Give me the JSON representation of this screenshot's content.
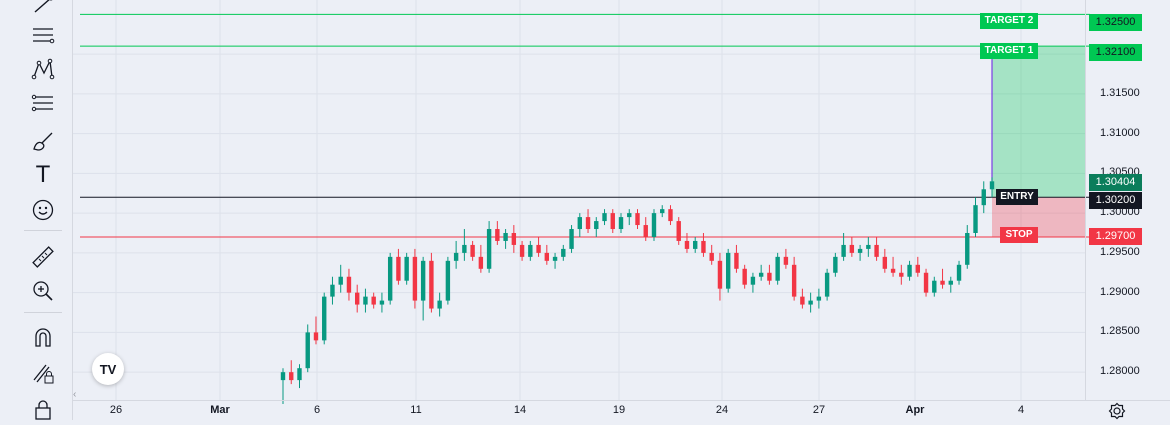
{
  "toolbar": {
    "tools": [
      {
        "name": "trend-line-icon"
      },
      {
        "name": "parallel-lines-icon"
      },
      {
        "name": "pattern-xabcd-icon"
      },
      {
        "name": "fib-retracement-icon"
      },
      {
        "name": "brush-icon"
      },
      {
        "name": "text-tool-icon",
        "glyph": "T"
      },
      {
        "name": "emoji-icon"
      },
      {
        "name": "ruler-icon"
      },
      {
        "name": "zoom-in-icon"
      },
      {
        "name": "magnet-icon"
      },
      {
        "name": "lock-drawing-icon"
      },
      {
        "name": "lock-icon"
      }
    ]
  },
  "chart_data": {
    "type": "candlestick",
    "symbol_logo": "TV",
    "y_ticks": [
      "1.28000",
      "1.28500",
      "1.29000",
      "1.29500",
      "1.30000",
      "1.30500",
      "1.31000",
      "1.31500",
      "1.32000"
    ],
    "y_range": [
      1.2765,
      1.3268
    ],
    "x_ticks": [
      "26",
      "Mar",
      "6",
      "11",
      "14",
      "19",
      "24",
      "27",
      "Apr",
      "4"
    ],
    "levels": {
      "target2": {
        "label": "TARGET 2",
        "price": "1.32500",
        "value": 1.325,
        "color": "#00c853"
      },
      "target1": {
        "label": "TARGET 1",
        "price": "1.32100",
        "value": 1.321,
        "color": "#00c853"
      },
      "entry": {
        "label": "ENTRY",
        "price": "1.30200",
        "value": 1.302,
        "color": "#131722"
      },
      "stop": {
        "label": "STOP",
        "price": "1.29700",
        "value": 1.297,
        "color": "#f23645"
      },
      "current": {
        "price": "1.30404",
        "value": 1.30404,
        "color": "#0b7d5b"
      }
    },
    "candles": [
      [
        1.279,
        1.2805,
        1.276,
        1.28
      ],
      [
        1.28,
        1.2815,
        1.2785,
        1.279
      ],
      [
        1.279,
        1.281,
        1.278,
        1.2805
      ],
      [
        1.2805,
        1.286,
        1.28,
        1.285
      ],
      [
        1.285,
        1.287,
        1.2835,
        1.284
      ],
      [
        1.284,
        1.29,
        1.2835,
        1.2895
      ],
      [
        1.2895,
        1.292,
        1.2885,
        1.291
      ],
      [
        1.291,
        1.2935,
        1.29,
        1.292
      ],
      [
        1.292,
        1.293,
        1.289,
        1.29
      ],
      [
        1.29,
        1.291,
        1.2875,
        1.2885
      ],
      [
        1.2885,
        1.2905,
        1.2875,
        1.2895
      ],
      [
        1.2895,
        1.29,
        1.288,
        1.2885
      ],
      [
        1.2885,
        1.29,
        1.2875,
        1.289
      ],
      [
        1.289,
        1.295,
        1.2885,
        1.2945
      ],
      [
        1.2945,
        1.2955,
        1.291,
        1.2915
      ],
      [
        1.2915,
        1.295,
        1.291,
        1.2945
      ],
      [
        1.2945,
        1.2955,
        1.288,
        1.289
      ],
      [
        1.289,
        1.2945,
        1.2865,
        1.294
      ],
      [
        1.294,
        1.295,
        1.2875,
        1.288
      ],
      [
        1.288,
        1.29,
        1.287,
        1.289
      ],
      [
        1.289,
        1.2945,
        1.2885,
        1.294
      ],
      [
        1.294,
        1.2965,
        1.293,
        1.295
      ],
      [
        1.295,
        1.298,
        1.294,
        1.296
      ],
      [
        1.296,
        1.2965,
        1.294,
        1.2945
      ],
      [
        1.2945,
        1.296,
        1.2925,
        1.293
      ],
      [
        1.293,
        1.299,
        1.2925,
        1.298
      ],
      [
        1.298,
        1.299,
        1.296,
        1.2965
      ],
      [
        1.2965,
        1.298,
        1.2955,
        1.2975
      ],
      [
        1.2975,
        1.2985,
        1.295,
        1.296
      ],
      [
        1.296,
        1.2965,
        1.294,
        1.2945
      ],
      [
        1.2945,
        1.2965,
        1.294,
        1.296
      ],
      [
        1.296,
        1.297,
        1.2945,
        1.295
      ],
      [
        1.295,
        1.296,
        1.2935,
        1.294
      ],
      [
        1.294,
        1.295,
        1.293,
        1.2945
      ],
      [
        1.2945,
        1.296,
        1.294,
        1.2955
      ],
      [
        1.2955,
        1.2985,
        1.295,
        1.298
      ],
      [
        1.298,
        1.3,
        1.297,
        1.2995
      ],
      [
        1.2995,
        1.3005,
        1.2975,
        1.298
      ],
      [
        1.298,
        1.2995,
        1.297,
        1.299
      ],
      [
        1.299,
        1.3005,
        1.2985,
        1.3
      ],
      [
        1.3,
        1.3005,
        1.2975,
        1.298
      ],
      [
        1.298,
        1.3,
        1.2975,
        1.2995
      ],
      [
        1.2995,
        1.3005,
        1.2985,
        1.3
      ],
      [
        1.3,
        1.3005,
        1.298,
        1.2985
      ],
      [
        1.2985,
        1.2995,
        1.2965,
        1.297
      ],
      [
        1.297,
        1.3005,
        1.2965,
        1.3
      ],
      [
        1.3,
        1.301,
        1.2995,
        1.3005
      ],
      [
        1.3005,
        1.301,
        1.2985,
        1.299
      ],
      [
        1.299,
        1.2995,
        1.296,
        1.2965
      ],
      [
        1.2965,
        1.2975,
        1.295,
        1.2955
      ],
      [
        1.2955,
        1.297,
        1.295,
        1.2965
      ],
      [
        1.2965,
        1.2975,
        1.2945,
        1.295
      ],
      [
        1.295,
        1.296,
        1.2935,
        1.294
      ],
      [
        1.294,
        1.295,
        1.289,
        1.2905
      ],
      [
        1.2905,
        1.2955,
        1.29,
        1.295
      ],
      [
        1.295,
        1.296,
        1.2925,
        1.293
      ],
      [
        1.293,
        1.2935,
        1.2905,
        1.291
      ],
      [
        1.291,
        1.2925,
        1.29,
        1.292
      ],
      [
        1.292,
        1.2935,
        1.2915,
        1.2925
      ],
      [
        1.2925,
        1.2935,
        1.291,
        1.2915
      ],
      [
        1.2915,
        1.295,
        1.291,
        1.2945
      ],
      [
        1.2945,
        1.2955,
        1.293,
        1.2935
      ],
      [
        1.2935,
        1.2945,
        1.289,
        1.2895
      ],
      [
        1.2895,
        1.2905,
        1.288,
        1.2885
      ],
      [
        1.2885,
        1.29,
        1.2875,
        1.289
      ],
      [
        1.289,
        1.2905,
        1.288,
        1.2895
      ],
      [
        1.2895,
        1.293,
        1.289,
        1.2925
      ],
      [
        1.2925,
        1.295,
        1.292,
        1.2945
      ],
      [
        1.2945,
        1.2975,
        1.294,
        1.296
      ],
      [
        1.296,
        1.297,
        1.2945,
        1.295
      ],
      [
        1.295,
        1.296,
        1.294,
        1.2955
      ],
      [
        1.2955,
        1.297,
        1.2945,
        1.296
      ],
      [
        1.296,
        1.297,
        1.294,
        1.2945
      ],
      [
        1.2945,
        1.2955,
        1.2925,
        1.293
      ],
      [
        1.293,
        1.2945,
        1.292,
        1.2925
      ],
      [
        1.2925,
        1.2935,
        1.291,
        1.292
      ],
      [
        1.292,
        1.294,
        1.2915,
        1.2935
      ],
      [
        1.2935,
        1.2945,
        1.292,
        1.2925
      ],
      [
        1.2925,
        1.293,
        1.2895,
        1.29
      ],
      [
        1.29,
        1.292,
        1.2895,
        1.2915
      ],
      [
        1.2915,
        1.293,
        1.2905,
        1.291
      ],
      [
        1.291,
        1.292,
        1.29,
        1.2915
      ],
      [
        1.2915,
        1.294,
        1.291,
        1.2935
      ],
      [
        1.2935,
        1.2985,
        1.293,
        1.2975
      ],
      [
        1.2975,
        1.302,
        1.297,
        1.301
      ],
      [
        1.301,
        1.304,
        1.3,
        1.303
      ],
      [
        1.303,
        1.3045,
        1.302,
        1.304
      ]
    ]
  },
  "axis": {
    "settings_icon": "gear-icon",
    "scroll_left": "‹"
  }
}
